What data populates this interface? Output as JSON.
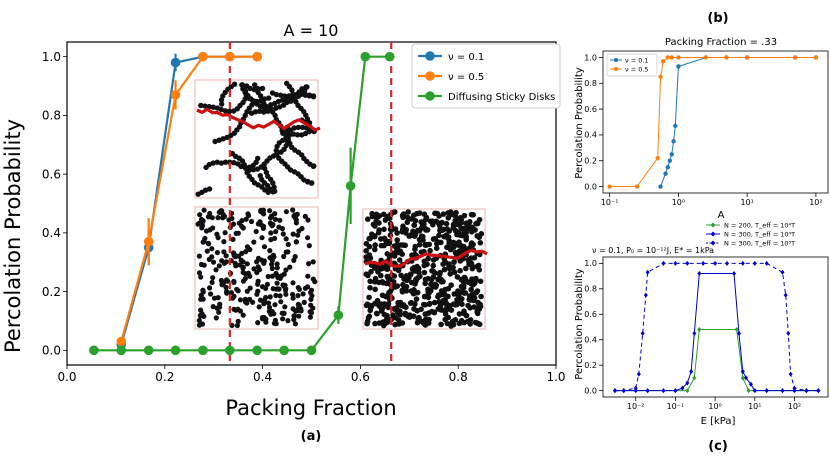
{
  "panel_labels": {
    "a": "(a)",
    "b": "(b)",
    "c": "(c)"
  },
  "chart_data": [
    {
      "id": "a",
      "type": "line",
      "title": "A = 10",
      "xlabel": "Packing Fraction",
      "ylabel": "Percolation Probability",
      "xlim": [
        0.0,
        1.0
      ],
      "ylim": [
        -0.05,
        1.05
      ],
      "xticks": [
        0.0,
        0.2,
        0.4,
        0.6,
        0.8,
        1.0
      ],
      "xtick_labels": [
        "0.0",
        "0.2",
        "0.4",
        "0.6",
        "0.8",
        "1.0"
      ],
      "yticks": [
        0.0,
        0.2,
        0.4,
        0.6,
        0.8,
        1.0
      ],
      "ytick_labels": [
        "0.0",
        "0.2",
        "0.4",
        "0.6",
        "0.8",
        "1.0"
      ],
      "legend_position": "top-right",
      "vlines": [
        0.333,
        0.663
      ],
      "vline_color": "#d62728",
      "series": [
        {
          "name": "ν = 0.1",
          "color": "#1f77b4",
          "x": [
            0.111,
            0.167,
            0.222,
            0.278,
            0.333,
            0.389
          ],
          "y": [
            0.02,
            0.35,
            0.98,
            1.0,
            1.0,
            1.0
          ],
          "err": [
            0.01,
            0.06,
            0.03,
            0,
            0,
            0
          ]
        },
        {
          "name": "ν = 0.5",
          "color": "#ff7f0e",
          "x": [
            0.111,
            0.167,
            0.222,
            0.278,
            0.333,
            0.389
          ],
          "y": [
            0.03,
            0.37,
            0.87,
            1.0,
            1.0,
            1.0
          ],
          "err": [
            0.01,
            0.08,
            0.05,
            0,
            0,
            0
          ]
        },
        {
          "name": "Diffusing Sticky Disks",
          "color": "#2ca02c",
          "x": [
            0.055,
            0.111,
            0.167,
            0.222,
            0.278,
            0.333,
            0.389,
            0.444,
            0.5,
            0.555,
            0.58,
            0.61,
            0.66
          ],
          "y": [
            0.0,
            0.0,
            0.0,
            0.0,
            0.0,
            0.0,
            0.0,
            0.0,
            0.0,
            0.12,
            0.56,
            1.0,
            1.0
          ],
          "err": [
            0,
            0,
            0,
            0,
            0,
            0,
            0,
            0,
            0,
            0.03,
            0.13,
            0,
            0
          ]
        }
      ]
    },
    {
      "id": "b",
      "type": "line",
      "title": "Packing Fraction = .33",
      "xlabel": "A",
      "ylabel": "Percolation Probability",
      "xscale": "log",
      "xlim": [
        0.08,
        150
      ],
      "ylim": [
        -0.05,
        1.05
      ],
      "xticks": [
        0.1,
        1,
        10,
        100
      ],
      "xtick_labels": [
        "10⁻¹",
        "10⁰",
        "10¹",
        "10²"
      ],
      "yticks": [
        0.0,
        0.2,
        0.4,
        0.6,
        0.8,
        1.0
      ],
      "ytick_labels": [
        "0.0",
        "0.2",
        "0.4",
        "0.6",
        "0.8",
        "1.0"
      ],
      "legend_position": "top-left",
      "series": [
        {
          "name": "ν = 0.1",
          "color": "#1f77b4",
          "x": [
            0.55,
            0.65,
            0.7,
            0.75,
            0.8,
            0.85,
            0.9,
            1.0,
            2.5,
            5,
            10,
            50,
            100
          ],
          "y": [
            0.0,
            0.1,
            0.15,
            0.2,
            0.25,
            0.35,
            0.47,
            0.93,
            1.0,
            1.0,
            1.0,
            1.0,
            1.0
          ]
        },
        {
          "name": "ν = 0.5",
          "color": "#ff7f0e",
          "x": [
            0.1,
            0.25,
            0.5,
            0.55,
            0.6,
            0.7,
            0.8,
            1.0,
            2.5,
            5,
            10,
            50,
            100
          ],
          "y": [
            0.0,
            0.0,
            0.22,
            0.85,
            0.97,
            1.0,
            1.0,
            1.0,
            1.0,
            1.0,
            1.0,
            1.0,
            1.0
          ]
        }
      ]
    },
    {
      "id": "c",
      "type": "line",
      "title": "ν = 0.1, P₀ = 10⁻¹²J, E* = 1kPa",
      "xlabel": "E [kPa]",
      "ylabel": "Percolation Probability",
      "xscale": "log",
      "xlim": [
        0.0015,
        700
      ],
      "ylim": [
        -0.05,
        1.05
      ],
      "xticks": [
        0.01,
        0.1,
        1,
        10,
        100
      ],
      "xtick_labels": [
        "10⁻²",
        "10⁻¹",
        "10⁰",
        "10¹",
        "10²"
      ],
      "yticks": [
        0.0,
        0.2,
        0.4,
        0.6,
        0.8,
        1.0
      ],
      "ytick_labels": [
        "0.0",
        "0.2",
        "0.4",
        "0.6",
        "0.8",
        "1.0"
      ],
      "legend_position": "top-right",
      "series": [
        {
          "name": "N = 200, T_eff = 10⁴T",
          "color": "#2ca02c",
          "dash": "",
          "x": [
            0.003,
            0.005,
            0.01,
            0.02,
            0.05,
            0.1,
            0.2,
            0.3,
            0.4,
            3.5,
            5,
            7,
            10,
            20,
            50,
            100,
            200,
            400
          ],
          "y": [
            0,
            0,
            0,
            0,
            0,
            0,
            0,
            0.1,
            0.48,
            0.48,
            0.1,
            0,
            0,
            0,
            0,
            0,
            0,
            0
          ]
        },
        {
          "name": "N = 300, T_eff = 10⁴T",
          "color": "#0000cc",
          "dash": "",
          "x": [
            0.003,
            0.005,
            0.01,
            0.02,
            0.05,
            0.1,
            0.15,
            0.2,
            0.25,
            0.3,
            0.4,
            3.0,
            4,
            5,
            6,
            8,
            10,
            20,
            50,
            100,
            200,
            400
          ],
          "y": [
            0,
            0,
            0,
            0,
            0,
            0,
            0.02,
            0.06,
            0.15,
            0.45,
            0.92,
            0.92,
            0.45,
            0.15,
            0.1,
            0.05,
            0,
            0,
            0,
            0,
            0,
            0
          ]
        },
        {
          "name": "N = 300, T_eff = 10⁵T",
          "color": "#0000cc",
          "dash": "4,3",
          "x": [
            0.003,
            0.005,
            0.01,
            0.012,
            0.015,
            0.018,
            0.02,
            0.05,
            0.1,
            0.2,
            0.5,
            1,
            2,
            5,
            10,
            20,
            50,
            60,
            70,
            80,
            100,
            200,
            400
          ],
          "y": [
            0,
            0,
            0.02,
            0.13,
            0.45,
            0.75,
            0.93,
            1.0,
            1.0,
            1.0,
            1.0,
            1.0,
            1.0,
            1.0,
            1.0,
            1.0,
            0.93,
            0.75,
            0.45,
            0.13,
            0.02,
            0,
            0
          ]
        }
      ]
    }
  ]
}
